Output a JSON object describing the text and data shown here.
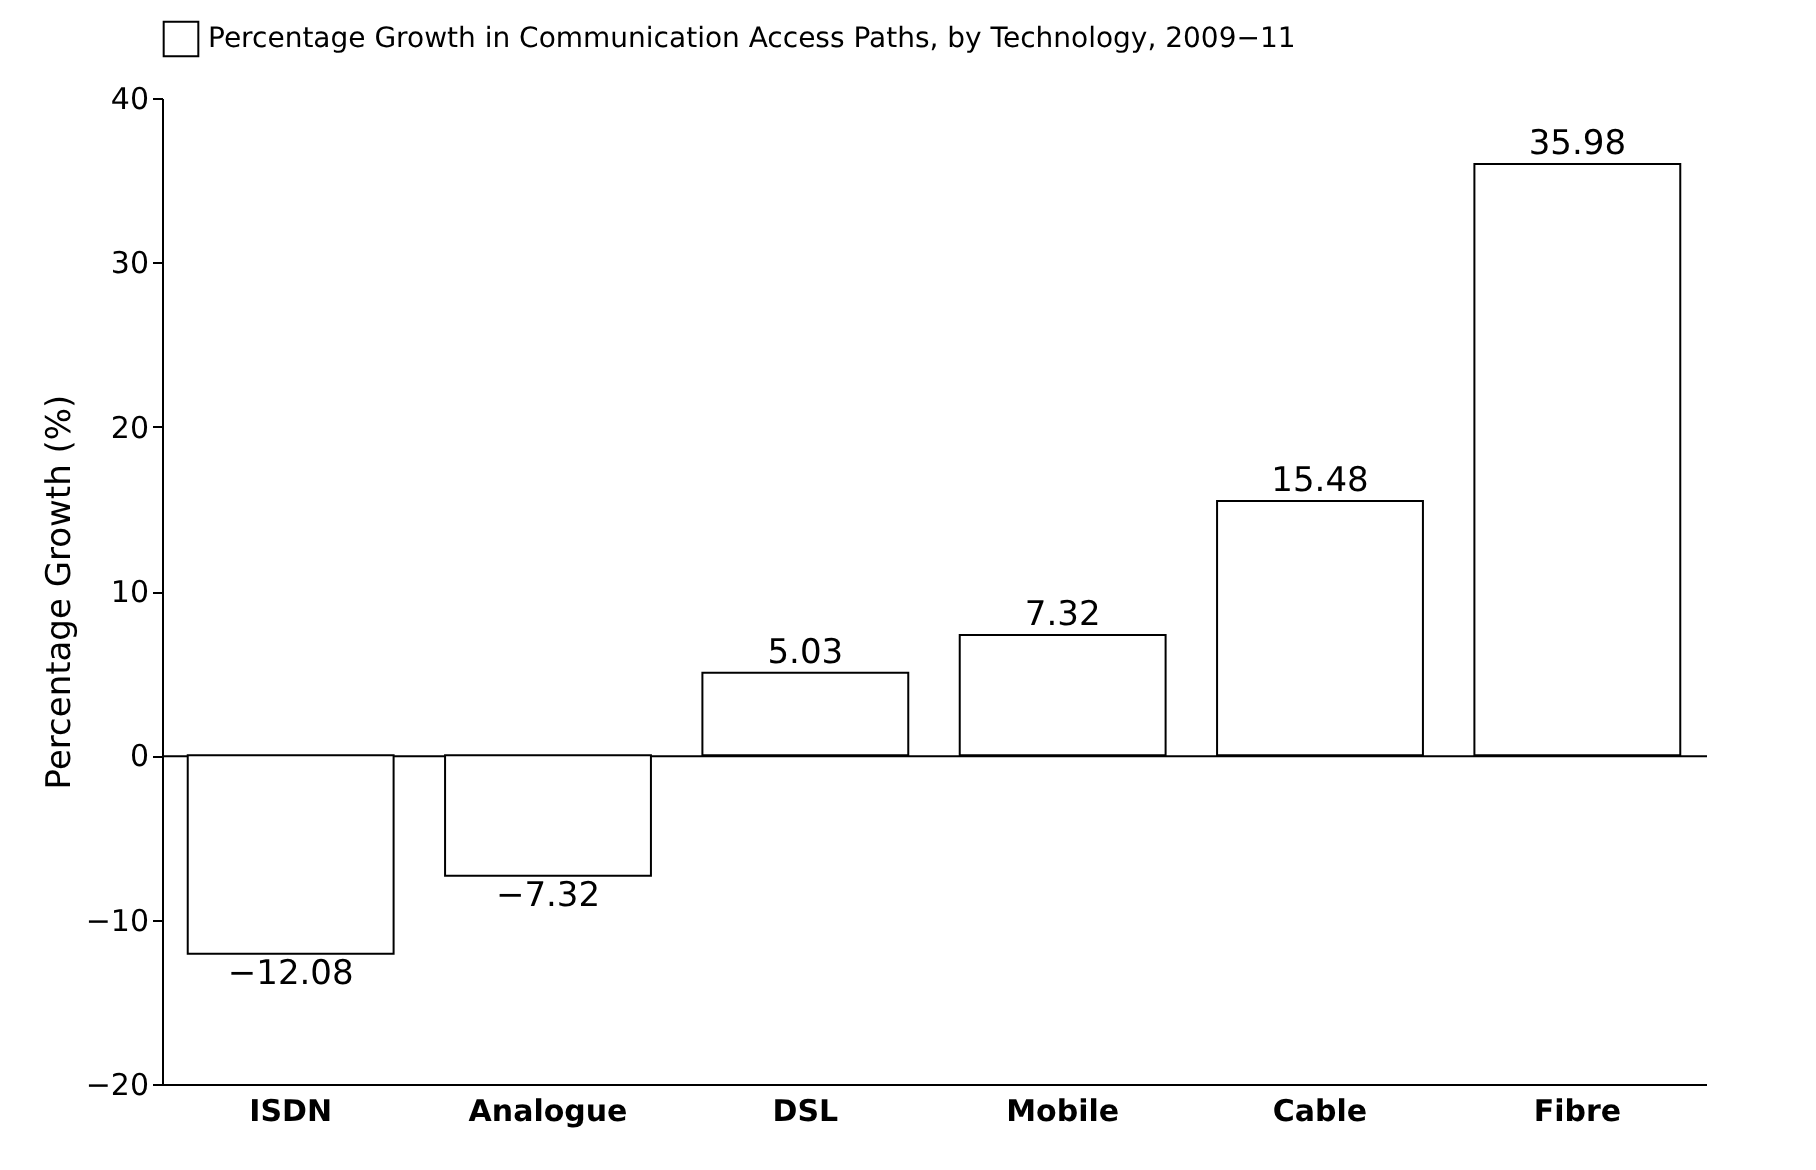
{
  "chart_data": {
    "type": "bar",
    "ylabel": "Percentage Growth (%)",
    "categories": [
      "ISDN",
      "Analogue",
      "DSL",
      "Mobile",
      "Cable",
      "Fibre"
    ],
    "series": [
      {
        "name": "Percentage Growth in Communication Access Paths, by Technology, 2009−11",
        "color": "#ffffff",
        "values": [
          -12.08,
          -7.32,
          5.03,
          7.32,
          15.48,
          35.98
        ]
      }
    ],
    "ylim": [
      -20,
      40
    ],
    "yticks": [
      {
        "value": -20,
        "label": "−20"
      },
      {
        "value": -10,
        "label": "−10"
      },
      0,
      10,
      20,
      30,
      40
    ],
    "data_labels": true,
    "legend": "top"
  }
}
